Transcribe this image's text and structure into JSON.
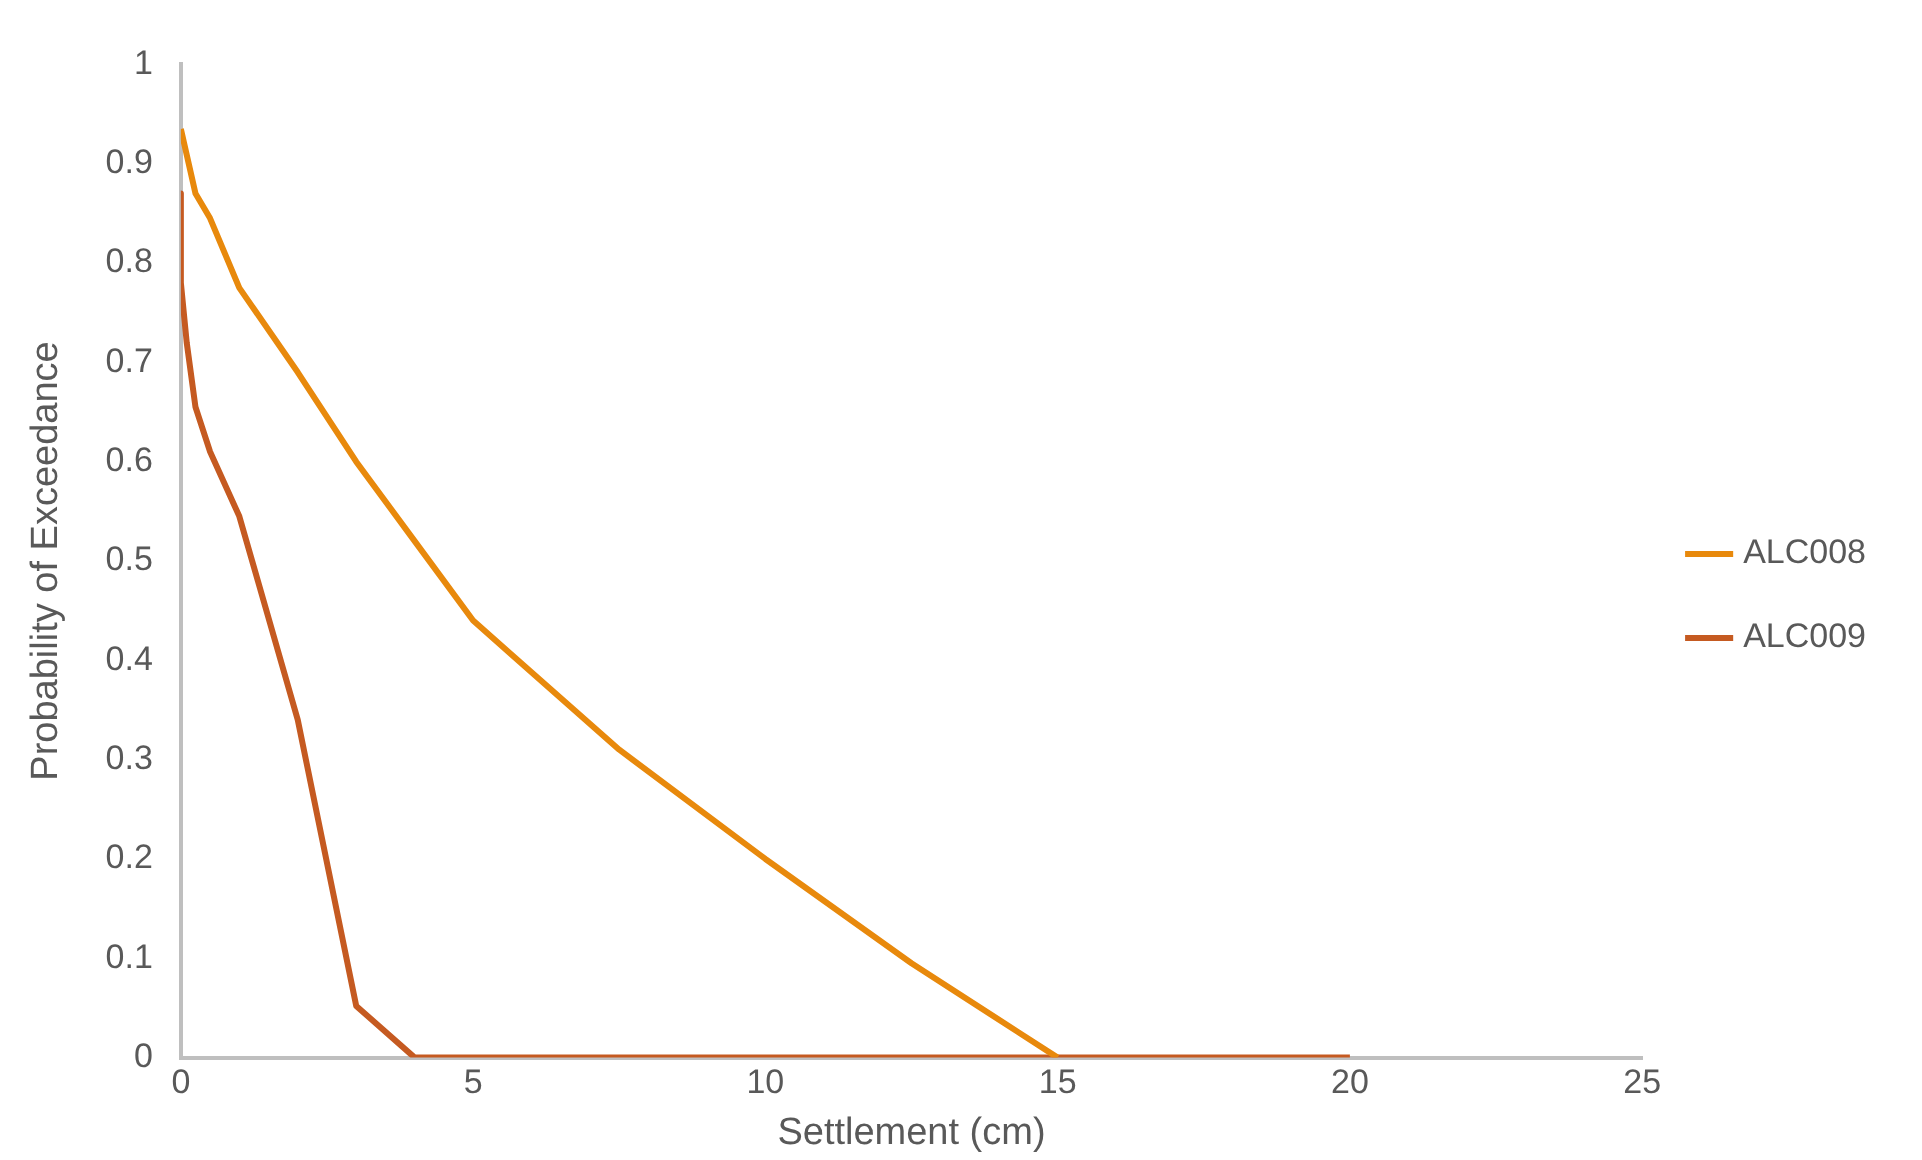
{
  "chart_data": {
    "type": "line",
    "xlabel": "Settlement (cm)",
    "ylabel": "Probability of Exceedance",
    "xlim": [
      0,
      25
    ],
    "xticks": [
      0,
      5,
      10,
      15,
      20,
      25
    ],
    "ylim": [
      0,
      1
    ],
    "yticks": [
      0,
      0.1,
      0.2,
      0.3,
      0.4,
      0.5,
      0.6,
      0.7,
      0.8,
      0.9,
      1
    ],
    "grid": false,
    "legend": "right",
    "marker": "none",
    "line_style": "solid",
    "series": [
      {
        "name": "ALC008",
        "color": "#e8890c",
        "x": [
          0,
          0.25,
          0.5,
          1,
          2,
          3,
          4,
          5,
          7.5,
          10,
          12.5,
          15
        ],
        "values": [
          0.935,
          0.87,
          0.845,
          0.775,
          0.69,
          0.6,
          0.52,
          0.44,
          0.31,
          0.2,
          0.095,
          0
        ]
      },
      {
        "name": "ALC009",
        "color": "#c55a21",
        "x": [
          0,
          0,
          0.1,
          0.25,
          0.5,
          1,
          2,
          3,
          4,
          20
        ],
        "values": [
          0.87,
          0.78,
          0.72,
          0.655,
          0.61,
          0.545,
          0.34,
          0.052,
          0,
          0
        ]
      }
    ]
  }
}
